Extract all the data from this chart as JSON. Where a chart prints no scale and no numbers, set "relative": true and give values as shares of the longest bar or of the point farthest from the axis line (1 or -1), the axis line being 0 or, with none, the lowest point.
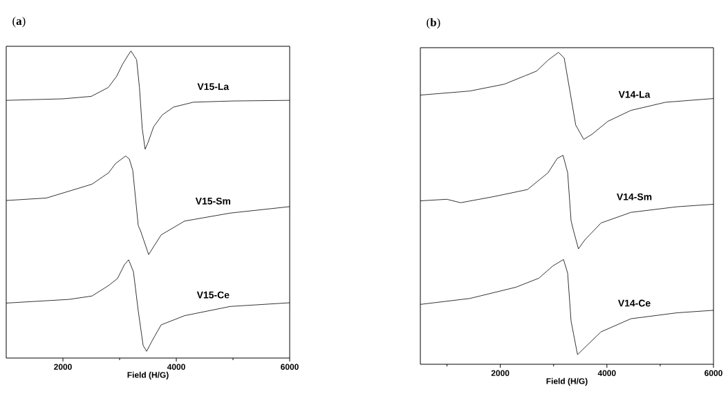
{
  "chart_data": [
    {
      "type": "line",
      "title": "(**a**)",
      "xlabel": "Field (H/G)",
      "xlim": [
        1000,
        6000
      ],
      "xticks": [
        2000,
        {
          "value": 3000,
          "label": null
        },
        4000,
        {
          "value": 5000,
          "label": null
        },
        6000
      ],
      "relative": true,
      "tick_labels": "x",
      "marker": "none",
      "line_style": "solid",
      "series": [
        {
          "name": "V15-La",
          "color": "#000000",
          "x": [
            1000,
            2000,
            2500,
            2800,
            2950,
            3050,
            3150,
            3200,
            3300,
            3350,
            3400,
            3450,
            3500,
            3600,
            3750,
            3950,
            4300,
            5000,
            6000
          ],
          "values": [
            0.839,
            0.844,
            0.852,
            0.881,
            0.918,
            0.956,
            0.986,
            1.0,
            0.971,
            0.881,
            0.746,
            0.68,
            0.701,
            0.753,
            0.791,
            0.817,
            0.833,
            0.837,
            0.839
          ]
        },
        {
          "name": "V15-Sm",
          "color": "#000000",
          "x": [
            1000,
            1707,
            2512,
            2805,
            2927,
            3106,
            3171,
            3232,
            3329,
            3366,
            3512,
            3732,
            4146,
            4951,
            6000
          ],
          "values": [
            0.513,
            0.521,
            0.566,
            0.603,
            0.633,
            0.658,
            0.648,
            0.611,
            0.431,
            0.416,
            0.337,
            0.401,
            0.446,
            0.472,
            0.493
          ]
        },
        {
          "name": "V15-Ce",
          "color": "#000000",
          "x": [
            1000,
            2110,
            2512,
            2805,
            2963,
            3085,
            3159,
            3244,
            3329,
            3415,
            3476,
            3573,
            3732,
            4146,
            4951,
            6000
          ],
          "values": [
            0.179,
            0.191,
            0.202,
            0.236,
            0.259,
            0.304,
            0.32,
            0.281,
            0.153,
            0.041,
            0.022,
            0.056,
            0.108,
            0.138,
            0.168,
            0.18
          ]
        }
      ]
    },
    {
      "type": "line",
      "title": "(**b**)",
      "xlabel": "Field (H/G)",
      "xlim": [
        500,
        6000
      ],
      "xticks": [
        {
          "value": 1000,
          "label": null
        },
        2000,
        {
          "value": 3000,
          "label": null
        },
        4000,
        {
          "value": 5000,
          "label": null
        },
        6000
      ],
      "relative": true,
      "tick_labels": "x",
      "marker": "none",
      "line_style": "solid",
      "series": [
        {
          "name": "V14-La",
          "color": "#000000",
          "x": [
            500,
            1428,
            2076,
            2465,
            2681,
            2896,
            3091,
            3199,
            3307,
            3415,
            3566,
            3717,
            4019,
            4451,
            5099,
            6000
          ],
          "values": [
            0.863,
            0.876,
            0.898,
            0.925,
            0.94,
            0.975,
            1.0,
            0.982,
            0.875,
            0.767,
            0.721,
            0.737,
            0.779,
            0.814,
            0.84,
            0.852
          ]
        },
        {
          "name": "V14-Sm",
          "color": "#000000",
          "x": [
            500,
            997,
            1256,
            1860,
            2508,
            2896,
            3069,
            3177,
            3264,
            3328,
            3371,
            3466,
            3587,
            3890,
            4451,
            5315,
            6000
          ],
          "values": [
            0.524,
            0.529,
            0.518,
            0.537,
            0.56,
            0.614,
            0.66,
            0.67,
            0.614,
            0.46,
            0.43,
            0.37,
            0.399,
            0.453,
            0.487,
            0.505,
            0.513
          ]
        },
        {
          "name": "V14-Ce",
          "color": "#000000",
          "x": [
            500,
            1428,
            2292,
            2724,
            2983,
            3186,
            3264,
            3328,
            3449,
            3587,
            3890,
            4451,
            5315,
            6000
          ],
          "values": [
            0.192,
            0.211,
            0.247,
            0.276,
            0.315,
            0.336,
            0.292,
            0.138,
            0.031,
            0.054,
            0.104,
            0.146,
            0.165,
            0.173
          ]
        }
      ]
    }
  ]
}
